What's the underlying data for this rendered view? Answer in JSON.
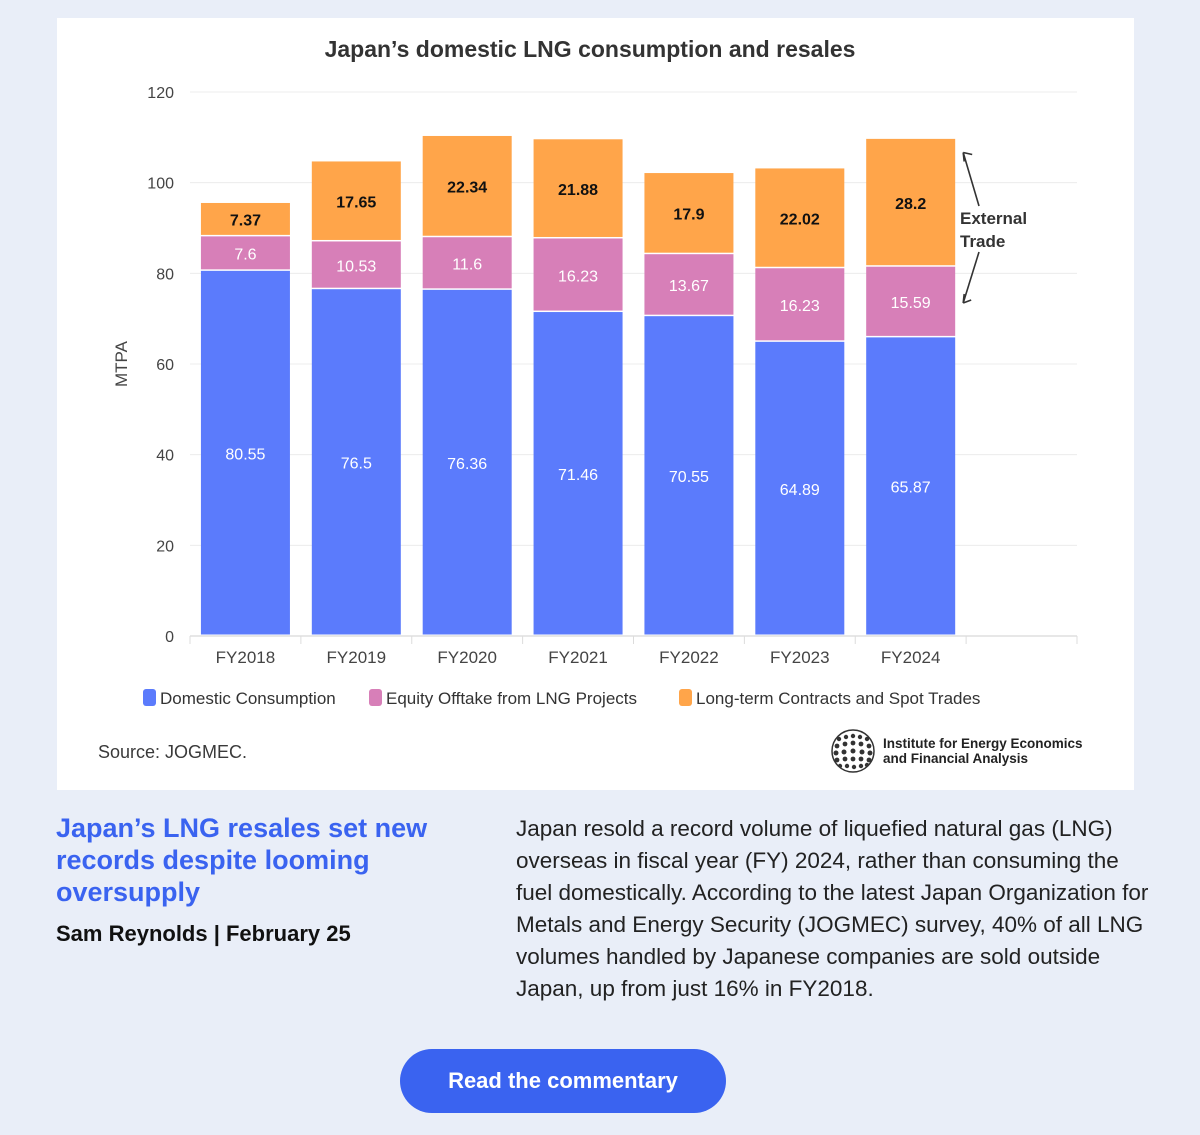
{
  "chart_data": {
    "type": "bar",
    "stacked": true,
    "title": "Japan’s domestic LNG consumption and resales",
    "ylabel": "MTPA",
    "xlabel": "",
    "ylim": [
      0,
      120
    ],
    "yticks": [
      0,
      20,
      40,
      60,
      80,
      100,
      120
    ],
    "categories": [
      "FY2018",
      "FY2019",
      "FY2020",
      "FY2021",
      "FY2022",
      "FY2023",
      "FY2024"
    ],
    "series": [
      {
        "name": "Domestic Consumption",
        "color": "#5b7bfc",
        "label_color": "#ffffff",
        "values": [
          80.55,
          76.5,
          76.36,
          71.46,
          70.55,
          64.89,
          65.87
        ]
      },
      {
        "name": "Equity Offtake from LNG Projects",
        "color": "#d77fb8",
        "label_color": "#ffffff",
        "values": [
          7.6,
          10.53,
          11.6,
          16.23,
          13.67,
          16.23,
          15.59
        ]
      },
      {
        "name": "Long-term Contracts and Spot Trades",
        "color": "#ffa54a",
        "label_color": "#111111",
        "values": [
          7.37,
          17.65,
          22.34,
          21.88,
          17.9,
          22.02,
          28.2
        ]
      }
    ],
    "annotation": {
      "line1": "External",
      "line2": "Trade"
    },
    "grid": true,
    "legend": "bottom"
  },
  "source": "Source: JOGMEC.",
  "logo": {
    "line1": "Institute for Energy Economics",
    "line2": "and Financial Analysis"
  },
  "article": {
    "headline": "Japan’s LNG resales set new records despite looming oversupply",
    "byline": "Sam Reynolds | February 25",
    "body": "Japan resold a record volume of liquefied natural gas (LNG) overseas in fiscal year (FY) 2024, rather than consuming the fuel domestically. According to the latest Japan Organization for Metals and Energy Security (JOGMEC) survey, 40% of all LNG volumes handled by Japanese companies are sold outside Japan, up from just 16% in FY2018."
  },
  "cta": {
    "label": "Read the commentary"
  }
}
